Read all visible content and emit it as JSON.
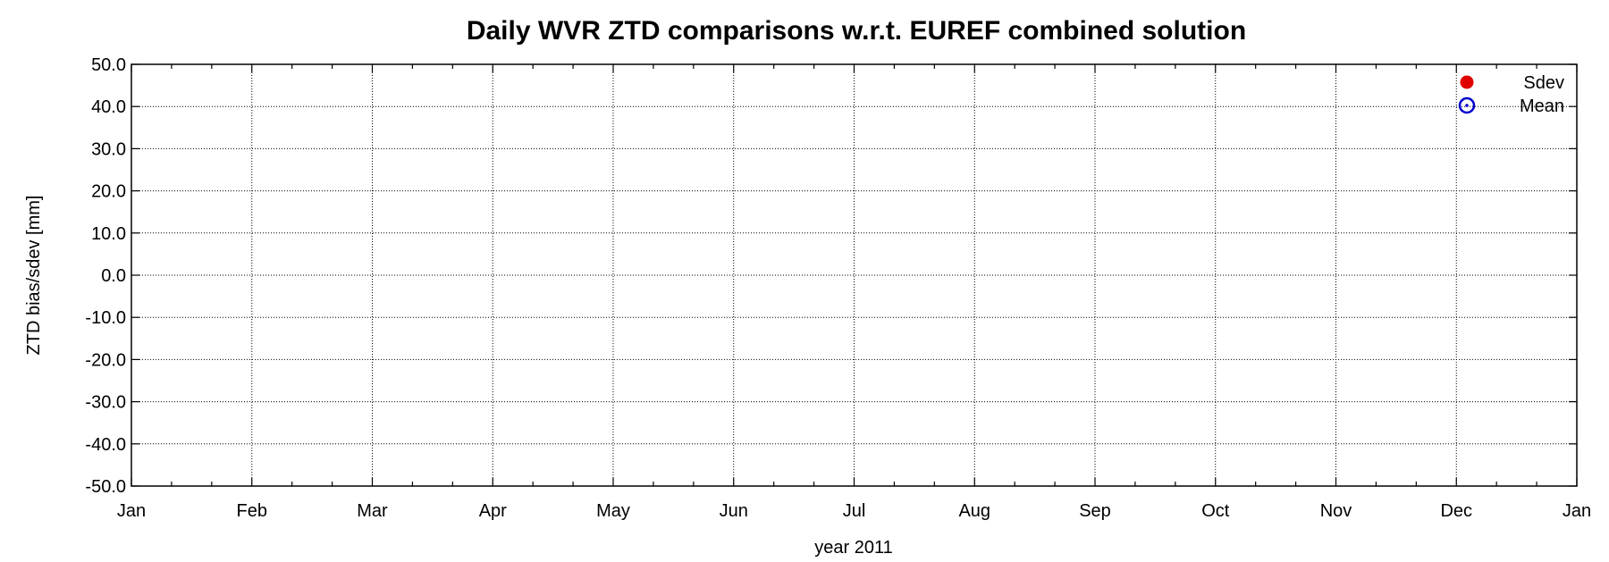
{
  "chart_data": {
    "type": "scatter",
    "title": "Daily WVR ZTD comparisons w.r.t. EUREF combined solution",
    "xlabel": "year 2011",
    "ylabel": "ZTD bias/sdev [mm]",
    "ylim": [
      -50.0,
      50.0
    ],
    "y_ticks": [
      "50.0",
      "40.0",
      "30.0",
      "20.0",
      "10.0",
      "0.0",
      "-10.0",
      "-20.0",
      "-30.0",
      "-40.0",
      "-50.0"
    ],
    "x_ticks": [
      "Jan",
      "Feb",
      "Mar",
      "Apr",
      "May",
      "Jun",
      "Jul",
      "Aug",
      "Sep",
      "Oct",
      "Nov",
      "Dec",
      "Jan"
    ],
    "grid": true,
    "legend_position": "top-right",
    "series": [
      {
        "name": "Sdev",
        "marker": "filled-circle",
        "color": "#e00000",
        "points": []
      },
      {
        "name": "Mean",
        "marker": "dotted-circle",
        "color": "#0000cc",
        "points": []
      }
    ]
  }
}
